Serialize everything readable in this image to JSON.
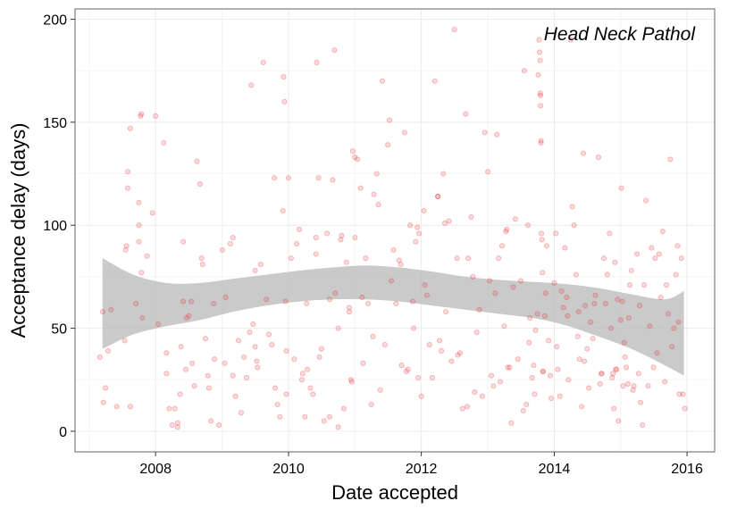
{
  "chart_data": {
    "type": "scatter",
    "title": "",
    "xlabel": "Date accepted",
    "ylabel": "Acceptance delay (days)",
    "annotation": "Head Neck Pathol",
    "x_axis": {
      "type": "date",
      "range": [
        "2006-10-15",
        "2016-06-01"
      ],
      "ticks": [
        "2008",
        "2010",
        "2012",
        "2014",
        "2016"
      ]
    },
    "y_axis": {
      "range": [
        -10,
        205
      ],
      "ticks": [
        "0",
        "50",
        "100",
        "150",
        "200"
      ]
    },
    "grid": true,
    "point_color": "#e8262a",
    "band_color": "#bdbdbd",
    "smoother": {
      "x": [
        "2007-03-15",
        "2007-09-01",
        "2008-03-01",
        "2008-09-01",
        "2009-03-01",
        "2009-09-01",
        "2010-03-01",
        "2010-09-01",
        "2011-03-01",
        "2011-09-01",
        "2012-03-01",
        "2012-09-01",
        "2013-03-01",
        "2013-09-01",
        "2014-03-01",
        "2014-09-01",
        "2015-03-01",
        "2015-09-01",
        "2015-12-15"
      ],
      "fit": [
        62,
        63,
        63,
        64,
        66,
        68,
        70,
        71.5,
        72,
        71,
        69,
        67,
        65.5,
        64,
        62,
        59,
        55,
        50,
        47
      ],
      "lower": [
        40,
        47,
        51,
        54,
        58,
        61,
        63,
        64,
        64,
        63,
        61,
        59,
        57,
        55,
        51.5,
        46,
        40,
        32,
        27
      ],
      "upper": [
        84,
        76,
        72,
        72,
        74,
        76,
        78,
        79.5,
        80.5,
        79.5,
        77.5,
        75,
        73.5,
        72.5,
        71.5,
        69.5,
        66.5,
        64,
        68
      ]
    },
    "points": [
      [
        "2007-03-01",
        36
      ],
      [
        "2007-03-15",
        58
      ],
      [
        "2007-04-01",
        21
      ],
      [
        "2007-03-20",
        14
      ],
      [
        "2007-04-15",
        39
      ],
      [
        "2007-05-01",
        59
      ],
      [
        "2007-06-01",
        12
      ],
      [
        "2007-07-15",
        44
      ],
      [
        "2007-07-20",
        88
      ],
      [
        "2007-07-25",
        90
      ],
      [
        "2007-08-01",
        118
      ],
      [
        "2007-08-01",
        126
      ],
      [
        "2007-08-15",
        147
      ],
      [
        "2007-08-15",
        12
      ],
      [
        "2007-09-15",
        62
      ],
      [
        "2007-10-01",
        92
      ],
      [
        "2007-10-01",
        100
      ],
      [
        "2007-10-01",
        111
      ],
      [
        "2007-10-10",
        153
      ],
      [
        "2007-10-15",
        154
      ],
      [
        "2007-10-15",
        77
      ],
      [
        "2007-10-20",
        55
      ],
      [
        "2007-11-15",
        85
      ],
      [
        "2007-12-15",
        106
      ],
      [
        "2008-01-01",
        153
      ],
      [
        "2008-01-15",
        52
      ],
      [
        "2008-02-15",
        140
      ],
      [
        "2008-03-01",
        38
      ],
      [
        "2008-03-01",
        28
      ],
      [
        "2008-03-15",
        11
      ],
      [
        "2008-04-01",
        3
      ],
      [
        "2008-04-15",
        11
      ],
      [
        "2008-05-01",
        2
      ],
      [
        "2008-05-01",
        4
      ],
      [
        "2008-05-15",
        18
      ],
      [
        "2008-05-20",
        41
      ],
      [
        "2008-06-01",
        63
      ],
      [
        "2008-06-01",
        92
      ],
      [
        "2008-06-15",
        30
      ],
      [
        "2008-06-20",
        55
      ],
      [
        "2008-07-01",
        56
      ],
      [
        "2008-07-15",
        63
      ],
      [
        "2008-07-20",
        33
      ],
      [
        "2008-08-01",
        22
      ],
      [
        "2008-08-15",
        131
      ],
      [
        "2008-09-01",
        120
      ],
      [
        "2008-09-10",
        84
      ],
      [
        "2008-09-15",
        81
      ],
      [
        "2008-10-01",
        45
      ],
      [
        "2008-10-15",
        27
      ],
      [
        "2008-10-20",
        21
      ],
      [
        "2008-11-01",
        5
      ],
      [
        "2008-11-15",
        62
      ],
      [
        "2008-11-20",
        35
      ],
      [
        "2008-12-15",
        3
      ],
      [
        "2009-01-01",
        88
      ],
      [
        "2009-01-15",
        33
      ],
      [
        "2009-01-20",
        65
      ],
      [
        "2009-02-15",
        91
      ],
      [
        "2009-03-01",
        94
      ],
      [
        "2009-03-01",
        27
      ],
      [
        "2009-03-15",
        17
      ],
      [
        "2009-04-01",
        44
      ],
      [
        "2009-04-15",
        9
      ],
      [
        "2009-05-01",
        36
      ],
      [
        "2009-05-15",
        26
      ],
      [
        "2009-06-01",
        48
      ],
      [
        "2009-06-10",
        168
      ],
      [
        "2009-06-20",
        52
      ],
      [
        "2009-07-01",
        78
      ],
      [
        "2009-07-01",
        41
      ],
      [
        "2009-07-10",
        34
      ],
      [
        "2009-07-15",
        31
      ],
      [
        "2009-08-01",
        81
      ],
      [
        "2009-08-15",
        179
      ],
      [
        "2009-09-01",
        64
      ],
      [
        "2009-09-15",
        47
      ],
      [
        "2009-10-01",
        42
      ],
      [
        "2009-10-15",
        123
      ],
      [
        "2009-10-20",
        21
      ],
      [
        "2009-11-01",
        13
      ],
      [
        "2009-11-15",
        7
      ],
      [
        "2009-12-01",
        107
      ],
      [
        "2009-12-05",
        172
      ],
      [
        "2009-12-10",
        160
      ],
      [
        "2009-12-15",
        63
      ],
      [
        "2009-12-20",
        18
      ],
      [
        "2009-12-20",
        39
      ],
      [
        "2010-01-01",
        123
      ],
      [
        "2010-01-15",
        84
      ],
      [
        "2010-02-01",
        35
      ],
      [
        "2010-02-15",
        91
      ],
      [
        "2010-03-01",
        98
      ],
      [
        "2010-03-15",
        25
      ],
      [
        "2010-03-20",
        28
      ],
      [
        "2010-04-01",
        7
      ],
      [
        "2010-04-10",
        62
      ],
      [
        "2010-04-15",
        30
      ],
      [
        "2010-05-01",
        21
      ],
      [
        "2010-05-15",
        18
      ],
      [
        "2010-06-01",
        94
      ],
      [
        "2010-06-01",
        86
      ],
      [
        "2010-06-05",
        179
      ],
      [
        "2010-06-15",
        123
      ],
      [
        "2010-06-20",
        36
      ],
      [
        "2010-07-01",
        40
      ],
      [
        "2010-07-15",
        5
      ],
      [
        "2010-08-01",
        96
      ],
      [
        "2010-08-15",
        64
      ],
      [
        "2010-08-15",
        7
      ],
      [
        "2010-09-01",
        122
      ],
      [
        "2010-09-10",
        185
      ],
      [
        "2010-09-15",
        67
      ],
      [
        "2010-10-01",
        50
      ],
      [
        "2010-10-01",
        2
      ],
      [
        "2010-10-15",
        93
      ],
      [
        "2010-10-20",
        95
      ],
      [
        "2010-11-01",
        11
      ],
      [
        "2010-11-15",
        82
      ],
      [
        "2010-12-01",
        58
      ],
      [
        "2010-12-01",
        60
      ],
      [
        "2010-12-10",
        25
      ],
      [
        "2010-12-15",
        24
      ],
      [
        "2010-12-20",
        136
      ],
      [
        "2011-01-01",
        133
      ],
      [
        "2011-01-01",
        94
      ],
      [
        "2011-01-15",
        132
      ],
      [
        "2011-02-01",
        118
      ],
      [
        "2011-02-10",
        65
      ],
      [
        "2011-02-15",
        33
      ],
      [
        "2011-03-01",
        84
      ],
      [
        "2011-03-15",
        62
      ],
      [
        "2011-04-01",
        13
      ],
      [
        "2011-04-10",
        46
      ],
      [
        "2011-04-15",
        115
      ],
      [
        "2011-05-01",
        125
      ],
      [
        "2011-05-10",
        110
      ],
      [
        "2011-05-20",
        20
      ],
      [
        "2011-06-01",
        170
      ],
      [
        "2011-06-15",
        42
      ],
      [
        "2011-07-01",
        139
      ],
      [
        "2011-07-10",
        151
      ],
      [
        "2011-07-20",
        73
      ],
      [
        "2011-08-01",
        88
      ],
      [
        "2011-08-15",
        62
      ],
      [
        "2011-09-01",
        83
      ],
      [
        "2011-09-10",
        81
      ],
      [
        "2011-09-15",
        32
      ],
      [
        "2011-10-01",
        145
      ],
      [
        "2011-10-10",
        29
      ],
      [
        "2011-10-20",
        30
      ],
      [
        "2011-11-01",
        100
      ],
      [
        "2011-11-15",
        63
      ],
      [
        "2011-11-20",
        50
      ],
      [
        "2011-12-01",
        92
      ],
      [
        "2011-12-10",
        99
      ],
      [
        "2011-12-15",
        26
      ],
      [
        "2011-12-20",
        96
      ],
      [
        "2012-01-01",
        17
      ],
      [
        "2012-01-15",
        107
      ],
      [
        "2012-01-20",
        71
      ],
      [
        "2012-02-01",
        66
      ],
      [
        "2012-02-15",
        42
      ],
      [
        "2012-03-01",
        26
      ],
      [
        "2012-03-15",
        170
      ],
      [
        "2012-04-01",
        114
      ],
      [
        "2012-04-01",
        114
      ],
      [
        "2012-04-10",
        44
      ],
      [
        "2012-04-20",
        39
      ],
      [
        "2012-05-01",
        125
      ],
      [
        "2012-05-10",
        101
      ],
      [
        "2012-05-15",
        58
      ],
      [
        "2012-06-01",
        102
      ],
      [
        "2012-06-15",
        34
      ],
      [
        "2012-07-01",
        195
      ],
      [
        "2012-07-15",
        84
      ],
      [
        "2012-07-20",
        37
      ],
      [
        "2012-08-01",
        38
      ],
      [
        "2012-08-15",
        11
      ],
      [
        "2012-09-01",
        154
      ],
      [
        "2012-09-10",
        12
      ],
      [
        "2012-09-15",
        84
      ],
      [
        "2012-10-01",
        104
      ],
      [
        "2012-10-10",
        75
      ],
      [
        "2012-10-20",
        19
      ],
      [
        "2012-11-01",
        48
      ],
      [
        "2012-11-15",
        59
      ],
      [
        "2012-12-01",
        17
      ],
      [
        "2012-12-15",
        145
      ],
      [
        "2013-01-01",
        126
      ],
      [
        "2013-01-10",
        73
      ],
      [
        "2013-01-20",
        27
      ],
      [
        "2013-02-01",
        22
      ],
      [
        "2013-02-10",
        67
      ],
      [
        "2013-02-20",
        144
      ],
      [
        "2013-03-01",
        84
      ],
      [
        "2013-03-10",
        24
      ],
      [
        "2013-03-20",
        90
      ],
      [
        "2013-04-01",
        51
      ],
      [
        "2013-04-10",
        97
      ],
      [
        "2013-04-15",
        98
      ],
      [
        "2013-04-20",
        31
      ],
      [
        "2013-05-01",
        31
      ],
      [
        "2013-05-10",
        4
      ],
      [
        "2013-05-20",
        70
      ],
      [
        "2013-06-01",
        103
      ],
      [
        "2013-06-15",
        35
      ],
      [
        "2013-07-01",
        73
      ],
      [
        "2013-07-15",
        10
      ],
      [
        "2013-07-20",
        175
      ],
      [
        "2013-08-01",
        13
      ],
      [
        "2013-08-10",
        100
      ],
      [
        "2013-08-15",
        43
      ],
      [
        "2013-08-20",
        55
      ],
      [
        "2013-09-01",
        26
      ],
      [
        "2013-09-10",
        32
      ],
      [
        "2013-09-15",
        18
      ],
      [
        "2013-09-20",
        49
      ],
      [
        "2013-10-01",
        57
      ],
      [
        "2013-10-05",
        173
      ],
      [
        "2013-10-10",
        190
      ],
      [
        "2013-10-12",
        184
      ],
      [
        "2013-10-15",
        180
      ],
      [
        "2013-10-16",
        164
      ],
      [
        "2013-10-17",
        163
      ],
      [
        "2013-10-18",
        158
      ],
      [
        "2013-10-20",
        141
      ],
      [
        "2013-10-20",
        140
      ],
      [
        "2013-10-22",
        96
      ],
      [
        "2013-10-25",
        93
      ],
      [
        "2013-10-28",
        77
      ],
      [
        "2013-10-30",
        29
      ],
      [
        "2013-11-01",
        29
      ],
      [
        "2013-11-10",
        56
      ],
      [
        "2013-11-15",
        67
      ],
      [
        "2013-11-20",
        90
      ],
      [
        "2013-12-01",
        44
      ],
      [
        "2013-12-10",
        27
      ],
      [
        "2013-12-15",
        16
      ],
      [
        "2014-01-01",
        72
      ],
      [
        "2014-01-10",
        96
      ],
      [
        "2014-01-15",
        41
      ],
      [
        "2014-01-20",
        30
      ],
      [
        "2014-02-01",
        17
      ],
      [
        "2014-02-10",
        68
      ],
      [
        "2014-02-20",
        60
      ],
      [
        "2014-03-01",
        89
      ],
      [
        "2014-03-10",
        65
      ],
      [
        "2014-03-15",
        56
      ],
      [
        "2014-03-20",
        25
      ],
      [
        "2014-04-01",
        190
      ],
      [
        "2014-04-10",
        109
      ],
      [
        "2014-04-20",
        100
      ],
      [
        "2014-05-01",
        76
      ],
      [
        "2014-05-10",
        46
      ],
      [
        "2014-05-15",
        58
      ],
      [
        "2014-05-20",
        35
      ],
      [
        "2014-06-01",
        12
      ],
      [
        "2014-06-10",
        135
      ],
      [
        "2014-06-15",
        34
      ],
      [
        "2014-06-20",
        61
      ],
      [
        "2014-07-01",
        40
      ],
      [
        "2014-07-10",
        21
      ],
      [
        "2014-07-20",
        53
      ],
      [
        "2014-08-01",
        45
      ],
      [
        "2014-08-10",
        62
      ],
      [
        "2014-08-15",
        66
      ],
      [
        "2014-09-01",
        133
      ],
      [
        "2014-09-10",
        23
      ],
      [
        "2014-09-15",
        28
      ],
      [
        "2014-09-20",
        28
      ],
      [
        "2014-10-01",
        84
      ],
      [
        "2014-10-10",
        62
      ],
      [
        "2014-10-20",
        76
      ],
      [
        "2014-11-01",
        96
      ],
      [
        "2014-11-10",
        50
      ],
      [
        "2014-11-15",
        26
      ],
      [
        "2014-11-20",
        28
      ],
      [
        "2014-11-25",
        11
      ],
      [
        "2014-12-01",
        82
      ],
      [
        "2014-12-05",
        30
      ],
      [
        "2014-12-10",
        30
      ],
      [
        "2014-12-15",
        64
      ],
      [
        "2014-12-20",
        5
      ],
      [
        "2015-01-01",
        54
      ],
      [
        "2015-01-05",
        118
      ],
      [
        "2015-01-10",
        63
      ],
      [
        "2015-01-15",
        22
      ],
      [
        "2015-01-20",
        43
      ],
      [
        "2015-01-25",
        36
      ],
      [
        "2015-02-01",
        31
      ],
      [
        "2015-02-10",
        23
      ],
      [
        "2015-02-15",
        55
      ],
      [
        "2015-02-20",
        71
      ],
      [
        "2015-03-01",
        78
      ],
      [
        "2015-03-10",
        20
      ],
      [
        "2015-03-15",
        22
      ],
      [
        "2015-04-01",
        86
      ],
      [
        "2015-04-10",
        28
      ],
      [
        "2015-04-15",
        61
      ],
      [
        "2015-04-20",
        14
      ],
      [
        "2015-05-01",
        3
      ],
      [
        "2015-05-10",
        71
      ],
      [
        "2015-05-20",
        112
      ],
      [
        "2015-06-01",
        22
      ],
      [
        "2015-06-10",
        51
      ],
      [
        "2015-06-20",
        89
      ],
      [
        "2015-07-01",
        31
      ],
      [
        "2015-07-10",
        84
      ],
      [
        "2015-07-20",
        38
      ],
      [
        "2015-08-01",
        86
      ],
      [
        "2015-08-10",
        65
      ],
      [
        "2015-08-20",
        97
      ],
      [
        "2015-09-01",
        24
      ],
      [
        "2015-09-10",
        71
      ],
      [
        "2015-09-20",
        57
      ],
      [
        "2015-10-01",
        132
      ],
      [
        "2015-10-10",
        41
      ],
      [
        "2015-10-20",
        50
      ],
      [
        "2015-11-01",
        76
      ],
      [
        "2015-11-10",
        90
      ],
      [
        "2015-11-15",
        53
      ],
      [
        "2015-11-20",
        18
      ],
      [
        "2015-12-01",
        84
      ],
      [
        "2015-12-10",
        18
      ],
      [
        "2015-12-20",
        11
      ]
    ]
  }
}
